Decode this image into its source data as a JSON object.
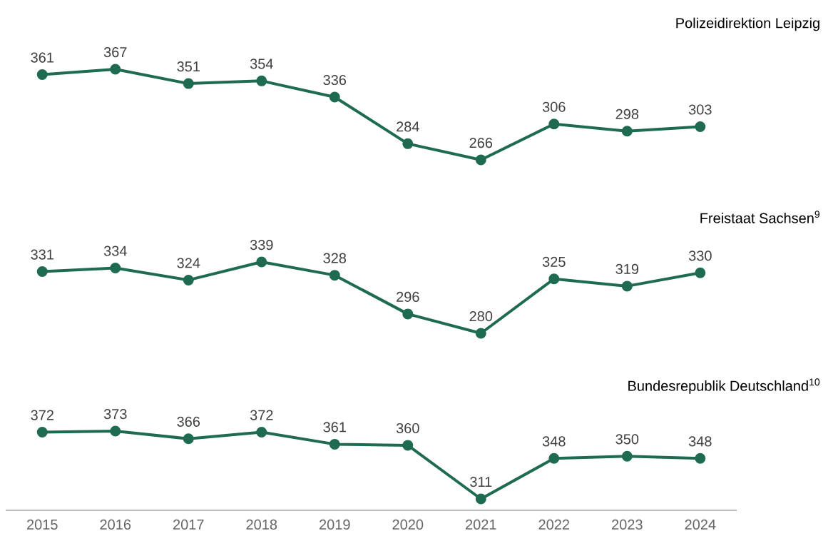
{
  "chart_data": [
    {
      "type": "line",
      "title": "Polizeidirektion Leipzig",
      "categories": [
        "2015",
        "2016",
        "2017",
        "2018",
        "2019",
        "2020",
        "2021",
        "2022",
        "2023",
        "2024"
      ],
      "values": [
        361,
        367,
        351,
        354,
        336,
        284,
        266,
        306,
        298,
        303
      ],
      "color": "#1f6b52",
      "marker": "circle",
      "line_style": "solid",
      "data_labels": true,
      "tick_labels": false
    },
    {
      "type": "line",
      "title": "Freistaat Sachsen$^{9}$",
      "categories": [
        "2015",
        "2016",
        "2017",
        "2018",
        "2019",
        "2020",
        "2021",
        "2022",
        "2023",
        "2024"
      ],
      "values": [
        331,
        334,
        324,
        339,
        328,
        296,
        280,
        325,
        319,
        330
      ],
      "color": "#1f6b52",
      "marker": "circle",
      "line_style": "solid",
      "data_labels": true,
      "tick_labels": false
    },
    {
      "type": "line",
      "title": "Bundesrepublik Deutschland$^{10}$",
      "categories": [
        "2015",
        "2016",
        "2017",
        "2018",
        "2019",
        "2020",
        "2021",
        "2022",
        "2023",
        "2024"
      ],
      "values": [
        372,
        373,
        366,
        372,
        361,
        360,
        311,
        348,
        350,
        348
      ],
      "color": "#1f6b52",
      "marker": "circle",
      "line_style": "solid",
      "data_labels": true,
      "tick_labels": "x"
    }
  ]
}
